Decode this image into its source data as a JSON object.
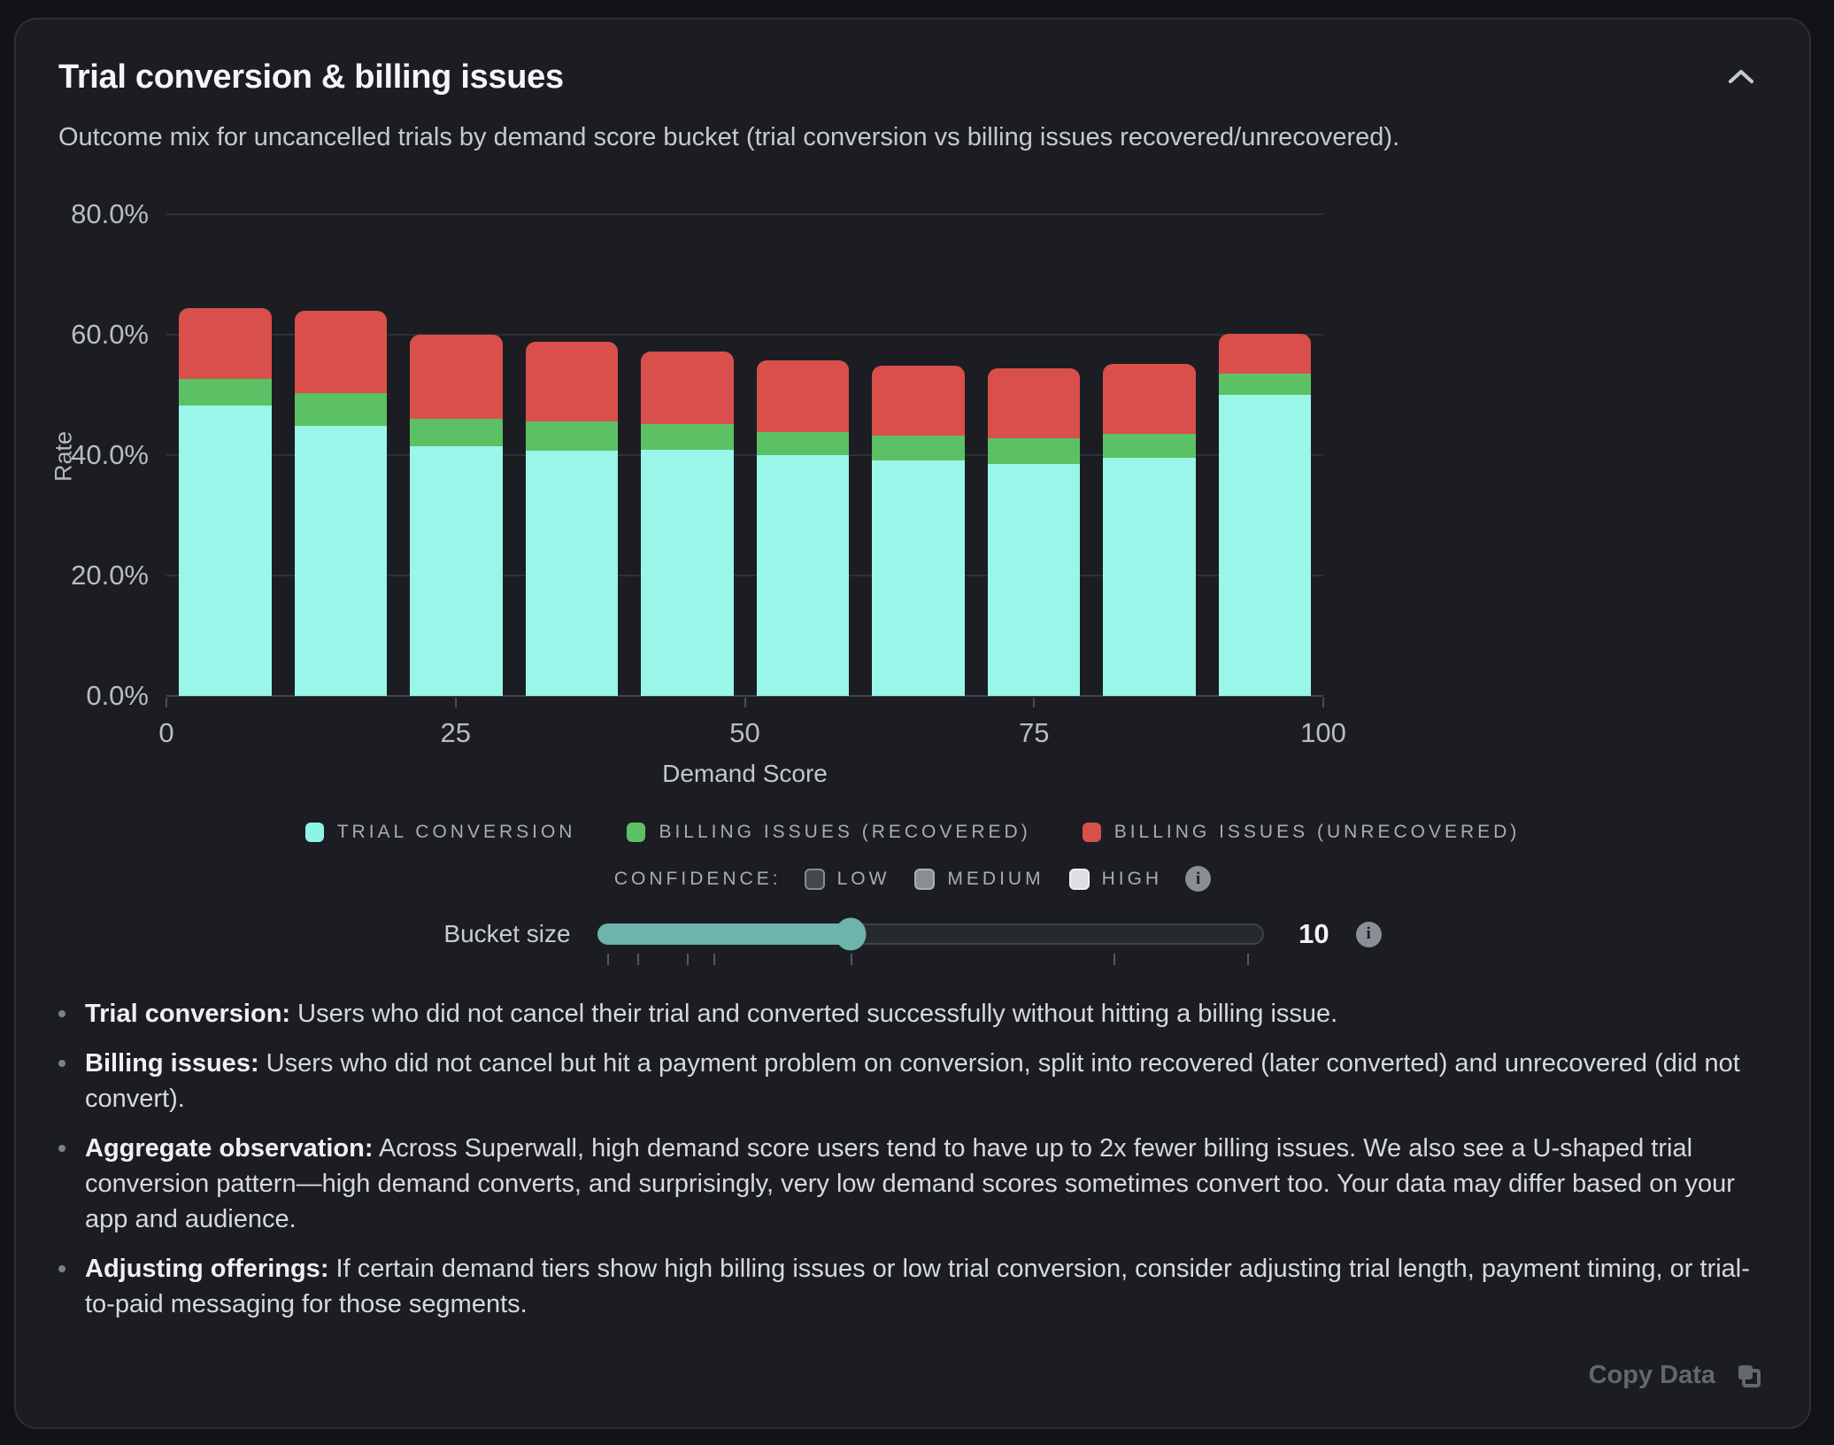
{
  "header": {
    "title": "Trial conversion & billing issues",
    "subtitle": "Outcome mix for uncancelled trials by demand score bucket (trial conversion vs billing issues recovered/unrecovered).",
    "collapse_icon": "chevron-up"
  },
  "chart_data": {
    "type": "bar",
    "stacked": true,
    "title": "Trial conversion & billing issues",
    "xlabel": "Demand Score",
    "ylabel": "Rate",
    "categories": [
      "0-10",
      "10-20",
      "20-30",
      "30-40",
      "40-50",
      "50-60",
      "60-70",
      "70-80",
      "80-90",
      "90-100"
    ],
    "series": [
      {
        "name": "Trial Conversion",
        "color": "#99f6e8",
        "values": [
          48.3,
          44.8,
          41.5,
          40.8,
          40.9,
          40.0,
          39.1,
          38.5,
          39.5,
          50.0
        ]
      },
      {
        "name": "Billing Issues (Recovered)",
        "color": "#5bc164",
        "values": [
          4.3,
          5.5,
          4.6,
          4.8,
          4.2,
          3.8,
          4.1,
          4.3,
          4.1,
          3.5
        ]
      },
      {
        "name": "Billing Issues (Unrecovered)",
        "color": "#d94f4b",
        "values": [
          11.8,
          13.7,
          13.9,
          13.2,
          12.1,
          12.0,
          11.7,
          11.6,
          11.5,
          6.7
        ]
      }
    ],
    "totals": [
      64.4,
      64.0,
      60.0,
      58.8,
      57.2,
      55.8,
      54.9,
      54.4,
      55.1,
      60.2
    ],
    "ylim": [
      0,
      80
    ],
    "yticks": [
      {
        "v": 0,
        "label": "0.0%"
      },
      {
        "v": 20,
        "label": "20.0%"
      },
      {
        "v": 40,
        "label": "40.0%"
      },
      {
        "v": 60,
        "label": "60.0%"
      },
      {
        "v": 80,
        "label": "80.0%"
      }
    ],
    "xticks": [
      {
        "v": 0,
        "label": "0"
      },
      {
        "v": 25,
        "label": "25"
      },
      {
        "v": 50,
        "label": "50"
      },
      {
        "v": 75,
        "label": "75"
      },
      {
        "v": 100,
        "label": "100"
      }
    ],
    "grid": "horizontal",
    "legend_position": "bottom"
  },
  "legend": {
    "items": [
      {
        "label": "TRIAL CONVERSION",
        "color": "#8df5e8"
      },
      {
        "label": "BILLING ISSUES (RECOVERED)",
        "color": "#5bc164"
      },
      {
        "label": "BILLING ISSUES (UNRECOVERED)",
        "color": "#d94f4b"
      }
    ]
  },
  "confidence": {
    "label": "CONFIDENCE:",
    "options": [
      {
        "label": "LOW",
        "bg": "#43474e",
        "border": "#888d94"
      },
      {
        "label": "MEDIUM",
        "bg": "#8a8f96",
        "border": "#aab0b6"
      },
      {
        "label": "HIGH",
        "bg": "#dcdee1",
        "border": "#edeff1"
      }
    ],
    "info_icon": "info-circle"
  },
  "controls": {
    "bucket_slider": {
      "label": "Bucket size",
      "value": "10",
      "fill_pct": 38,
      "accent": "#6db4ab",
      "tick_positions_pct": [
        1.5,
        6,
        13.5,
        17.5,
        38,
        77.5,
        97.5
      ],
      "info_icon": "info-circle"
    }
  },
  "notes": {
    "items": [
      {
        "lead": "Trial conversion:",
        "text": " Users who did not cancel their trial and converted successfully without hitting a billing issue."
      },
      {
        "lead": "Billing issues:",
        "text": " Users who did not cancel but hit a payment problem on conversion, split into recovered (later converted) and unrecovered (did not convert)."
      },
      {
        "lead": "Aggregate observation:",
        "text": " Across Superwall, high demand score users tend to have up to 2x fewer billing issues. We also see a U-shaped trial conversion pattern—high demand converts, and surprisingly, very low demand scores sometimes convert too. Your data may differ based on your app and audience."
      },
      {
        "lead": "Adjusting offerings:",
        "text": " If certain demand tiers show high billing issues or low trial conversion, consider adjusting trial length, payment timing, or trial-to-paid messaging for those segments."
      }
    ]
  },
  "footer": {
    "copy_label": "Copy Data",
    "copy_icon": "copy"
  }
}
